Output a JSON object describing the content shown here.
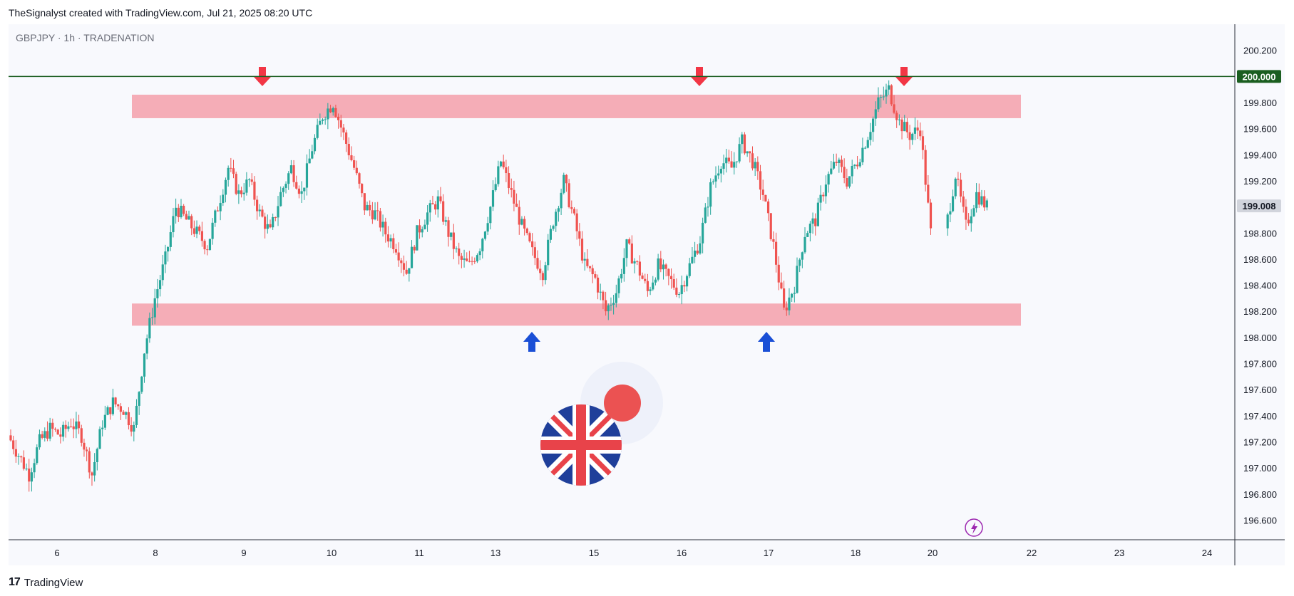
{
  "header": {
    "attribution": "TheSignalyst created with TradingView.com, Jul 21, 2025 08:20 UTC"
  },
  "footer": {
    "brand": "TradingView"
  },
  "colors": {
    "up": "#26a69a",
    "down": "#ef5350",
    "zone": "#f5a0aa",
    "resistance_line": "#1b5e20",
    "price_badge_bg": "#d1d4dc",
    "arrow_down": "#f23645",
    "arrow_up": "#1a4fd6"
  },
  "chart_data": {
    "type": "candlestick",
    "ticker": "GBPJPY · 1h · TRADENATION",
    "ylim": [
      196.45,
      200.4
    ],
    "y_ticks": [
      "200.200",
      "199.800",
      "199.600",
      "199.400",
      "199.200",
      "198.800",
      "198.600",
      "198.400",
      "198.200",
      "198.000",
      "197.800",
      "197.600",
      "197.400",
      "197.200",
      "197.000",
      "196.800",
      "196.600"
    ],
    "x_ticks": [
      "6",
      "8",
      "9",
      "10",
      "11",
      "13",
      "15",
      "16",
      "17",
      "18",
      "20",
      "22",
      "23",
      "24"
    ],
    "resistance_level": {
      "label": "200.000",
      "value": 200.0
    },
    "last_price": {
      "label": "199.008",
      "value": 199.008
    },
    "zones": [
      {
        "name": "resistance zone",
        "from": 199.68,
        "to": 199.86
      },
      {
        "name": "support zone",
        "from": 198.09,
        "to": 198.26
      }
    ],
    "touch_arrows": [
      {
        "direction": "down",
        "date": "9"
      },
      {
        "direction": "down",
        "date": "16"
      },
      {
        "direction": "down",
        "date": "18"
      },
      {
        "direction": "up",
        "date": "13"
      },
      {
        "direction": "up",
        "date": "17"
      }
    ],
    "price_path": [
      [
        0,
        197.25
      ],
      [
        1,
        197.1
      ],
      [
        2,
        196.95
      ],
      [
        3,
        197.2
      ],
      [
        4,
        197.3
      ],
      [
        5,
        197.25
      ],
      [
        6,
        197.35
      ],
      [
        7,
        197.25
      ],
      [
        8,
        196.95
      ],
      [
        9,
        197.35
      ],
      [
        10,
        197.5
      ],
      [
        11,
        197.45
      ],
      [
        12,
        197.3
      ],
      [
        13,
        197.9
      ],
      [
        14,
        198.3
      ],
      [
        15,
        198.6
      ],
      [
        16,
        199.0
      ],
      [
        17,
        198.9
      ],
      [
        18,
        198.8
      ],
      [
        19,
        198.7
      ],
      [
        20,
        199.0
      ],
      [
        21,
        199.3
      ],
      [
        22,
        199.1
      ],
      [
        23,
        199.2
      ],
      [
        24,
        198.95
      ],
      [
        25,
        198.8
      ],
      [
        26,
        199.1
      ],
      [
        27,
        199.3
      ],
      [
        28,
        199.1
      ],
      [
        29,
        199.45
      ],
      [
        30,
        199.7
      ],
      [
        31,
        199.8
      ],
      [
        32,
        199.55
      ],
      [
        33,
        199.3
      ],
      [
        34,
        199.0
      ],
      [
        35,
        198.95
      ],
      [
        36,
        198.8
      ],
      [
        37,
        198.7
      ],
      [
        38,
        198.5
      ],
      [
        39,
        198.8
      ],
      [
        40,
        198.95
      ],
      [
        41,
        199.05
      ],
      [
        42,
        198.8
      ],
      [
        43,
        198.6
      ],
      [
        44,
        198.55
      ],
      [
        45,
        198.7
      ],
      [
        46,
        199.0
      ],
      [
        47,
        199.35
      ],
      [
        48,
        199.1
      ],
      [
        49,
        198.85
      ],
      [
        50,
        198.65
      ],
      [
        51,
        198.5
      ],
      [
        52,
        198.9
      ],
      [
        53,
        199.2
      ],
      [
        54,
        198.9
      ],
      [
        55,
        198.55
      ],
      [
        56,
        198.45
      ],
      [
        57,
        198.2
      ],
      [
        58,
        198.35
      ],
      [
        59,
        198.7
      ],
      [
        60,
        198.55
      ],
      [
        61,
        198.35
      ],
      [
        62,
        198.55
      ],
      [
        63,
        198.45
      ],
      [
        64,
        198.35
      ],
      [
        65,
        198.55
      ],
      [
        66,
        198.75
      ],
      [
        67,
        199.15
      ],
      [
        68,
        199.35
      ],
      [
        69,
        199.3
      ],
      [
        70,
        199.5
      ],
      [
        71,
        199.35
      ],
      [
        72,
        199.1
      ],
      [
        73,
        198.7
      ],
      [
        74,
        198.2
      ],
      [
        75,
        198.4
      ],
      [
        76,
        198.8
      ],
      [
        77,
        198.9
      ],
      [
        78,
        199.2
      ],
      [
        79,
        199.35
      ],
      [
        80,
        199.2
      ],
      [
        81,
        199.35
      ],
      [
        82,
        199.55
      ],
      [
        83,
        199.8
      ],
      [
        84,
        199.9
      ],
      [
        85,
        199.65
      ],
      [
        86,
        199.55
      ],
      [
        87,
        199.6
      ],
      [
        88,
        198.8
      ],
      [
        89,
        199.25
      ],
      [
        90,
        198.85
      ],
      [
        91,
        199.1
      ],
      [
        92,
        199.0
      ]
    ]
  }
}
